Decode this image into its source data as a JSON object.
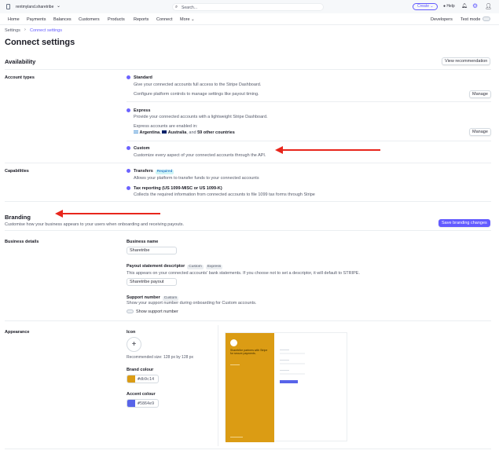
{
  "topbar": {
    "account": "rentmyland.sharetribe",
    "search_placeholder": "Search...",
    "create": "Create",
    "help": "Help"
  },
  "nav": {
    "items": [
      "Home",
      "Payments",
      "Balances",
      "Customers",
      "Products",
      "Reports",
      "Connect",
      "More"
    ],
    "developers": "Developers",
    "test_mode": "Test mode"
  },
  "breadcrumb": {
    "parent": "Settings",
    "current": "Connect settings"
  },
  "page_title": "Connect settings",
  "availability": {
    "title": "Availability",
    "view_recommendation": "View recommendation",
    "account_types_label": "Account types",
    "standard": {
      "title": "Standard",
      "desc": "Give your connected accounts full access to the Stripe Dashboard.",
      "desc2": "Configure platform controls to manage settings like payout timing.",
      "manage": "Manage"
    },
    "express": {
      "title": "Express",
      "desc": "Provide your connected accounts with a lightweight Stripe Dashboard.",
      "enabled_in": "Express accounts are enabled in:",
      "country1": "Argentina",
      "country2": "Australia",
      "and": ", and",
      "others": "59 other countries",
      "manage": "Manage"
    },
    "custom": {
      "title": "Custom",
      "desc": "Customize every aspect of your connected accounts through the API."
    },
    "capabilities_label": "Capabilities",
    "transfers": {
      "title": "Transfers",
      "badge": "Required",
      "desc": "Allows your platform to transfer funds to your connected accounts"
    },
    "tax": {
      "title": "Tax reporting (US 1099-MISC or US 1099-K)",
      "desc": "Collects the required information from connected accounts to file 1099 tax forms through Stripe"
    }
  },
  "branding": {
    "title": "Branding",
    "subtitle": "Customise how your business appears to your users when onboarding and receiving payouts.",
    "save": "Save branding changes",
    "business_details_label": "Business details",
    "business_name_label": "Business name",
    "business_name": "Sharetribe",
    "payout_label": "Payout statement descriptor",
    "badge_custom": "Custom",
    "badge_express": "Express",
    "payout_desc": "This appears on your connected accounts' bank statements. If you choose not to set a descriptor, it will default to STRIPE.",
    "payout_value": "Sharetribe payout",
    "support_label": "Support number",
    "support_desc": "Show your support number during onboarding for Custom accounts.",
    "support_toggle": "Show support number",
    "support_enabled": false,
    "appearance_label": "Appearance",
    "icon_label": "Icon",
    "icon_rec": "Recommended size: 128 px by 128 px",
    "brand_label": "Brand colour",
    "brand_value": "db9c14",
    "accent_label": "Accent colour",
    "accent_value": "5864e9",
    "preview_text": "Sharetribe partners with Stripe for secure payments."
  },
  "colors": {
    "brand": "#db9c14",
    "accent": "#5864e9",
    "link": "#635bff",
    "annotation": "#e8261c"
  }
}
